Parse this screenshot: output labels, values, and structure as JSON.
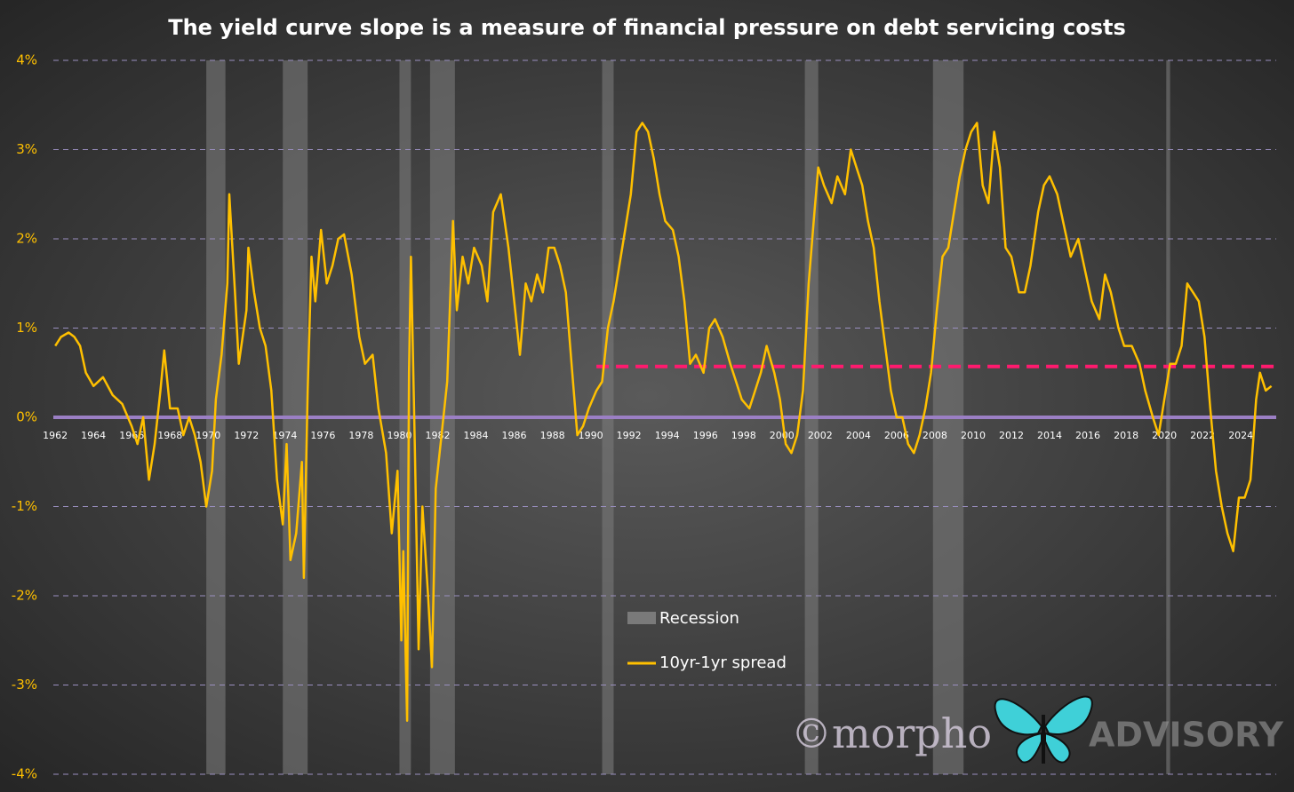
{
  "chart_data": {
    "type": "line",
    "title": "The yield curve slope is a measure of financial pressure on debt servicing costs",
    "series": [
      {
        "name": "10yr-1yr spread",
        "color": "#ffc000",
        "x": [
          1962.0,
          1962.3,
          1962.7,
          1963.0,
          1963.3,
          1963.6,
          1964.0,
          1964.5,
          1965.0,
          1965.5,
          1966.0,
          1966.3,
          1966.6,
          1966.9,
          1967.2,
          1967.5,
          1967.7,
          1968.0,
          1968.4,
          1968.7,
          1969.0,
          1969.3,
          1969.6,
          1969.9,
          1970.2,
          1970.4,
          1970.7,
          1971.0,
          1971.1,
          1971.4,
          1971.6,
          1972.0,
          1972.1,
          1972.4,
          1972.7,
          1973.0,
          1973.3,
          1973.6,
          1973.9,
          1974.1,
          1974.3,
          1974.6,
          1974.9,
          1975.0,
          1975.2,
          1975.4,
          1975.6,
          1975.9,
          1976.2,
          1976.5,
          1976.8,
          1977.1,
          1977.5,
          1977.9,
          1978.2,
          1978.6,
          1978.9,
          1979.3,
          1979.6,
          1979.9,
          1980.1,
          1980.2,
          1980.4,
          1980.5,
          1980.6,
          1980.8,
          1981.0,
          1981.2,
          1981.5,
          1981.7,
          1981.9,
          1982.2,
          1982.5,
          1982.8,
          1983.0,
          1983.3,
          1983.6,
          1983.9,
          1984.3,
          1984.6,
          1984.9,
          1985.3,
          1985.7,
          1986.0,
          1986.3,
          1986.6,
          1986.9,
          1987.2,
          1987.5,
          1987.8,
          1988.1,
          1988.4,
          1988.7,
          1989.0,
          1989.3,
          1989.6,
          1989.9,
          1990.3,
          1990.6,
          1990.9,
          1991.2,
          1991.5,
          1991.8,
          1992.1,
          1992.4,
          1992.7,
          1993.0,
          1993.3,
          1993.6,
          1993.9,
          1994.3,
          1994.6,
          1994.9,
          1995.2,
          1995.5,
          1995.9,
          1996.2,
          1996.5,
          1996.9,
          1997.3,
          1997.6,
          1997.9,
          1998.3,
          1998.6,
          1998.9,
          1999.2,
          1999.6,
          1999.9,
          2000.2,
          2000.5,
          2000.8,
          2001.1,
          2001.4,
          2001.7,
          2001.9,
          2002.2,
          2002.6,
          2002.9,
          2003.3,
          2003.6,
          2003.9,
          2004.2,
          2004.5,
          2004.8,
          2005.1,
          2005.4,
          2005.7,
          2006.0,
          2006.3,
          2006.6,
          2006.9,
          2007.2,
          2007.5,
          2007.8,
          2008.1,
          2008.4,
          2008.7,
          2009.0,
          2009.3,
          2009.6,
          2009.9,
          2010.2,
          2010.5,
          2010.8,
          2011.1,
          2011.4,
          2011.7,
          2012.0,
          2012.4,
          2012.7,
          2013.0,
          2013.4,
          2013.7,
          2014.0,
          2014.4,
          2014.8,
          2015.1,
          2015.5,
          2015.9,
          2016.2,
          2016.6,
          2016.9,
          2017.2,
          2017.6,
          2017.9,
          2018.3,
          2018.7,
          2019.0,
          2019.4,
          2019.7,
          2020.0,
          2020.3,
          2020.6,
          2020.9,
          2021.2,
          2021.5,
          2021.8,
          2022.1,
          2022.4,
          2022.7,
          2023.0,
          2023.3,
          2023.6,
          2023.9,
          2024.2,
          2024.5,
          2024.8,
          2025.0,
          2025.3,
          2025.6
        ],
        "values": [
          0.8,
          0.9,
          0.95,
          0.9,
          0.8,
          0.5,
          0.35,
          0.45,
          0.25,
          0.15,
          -0.1,
          -0.3,
          0.0,
          -0.7,
          -0.3,
          0.3,
          0.75,
          0.1,
          0.1,
          -0.2,
          0.0,
          -0.2,
          -0.5,
          -1.0,
          -0.6,
          0.2,
          0.7,
          1.5,
          2.5,
          1.4,
          0.6,
          1.2,
          1.9,
          1.4,
          1.0,
          0.8,
          0.3,
          -0.7,
          -1.2,
          -0.3,
          -1.6,
          -1.3,
          -0.5,
          -1.8,
          0.3,
          1.8,
          1.3,
          2.1,
          1.5,
          1.7,
          2.0,
          2.05,
          1.6,
          0.9,
          0.6,
          0.7,
          0.1,
          -0.4,
          -1.3,
          -0.6,
          -2.5,
          -1.5,
          -3.4,
          0.5,
          1.8,
          -0.3,
          -2.6,
          -1.0,
          -2.0,
          -2.8,
          -0.8,
          -0.2,
          0.4,
          2.2,
          1.2,
          1.8,
          1.5,
          1.9,
          1.7,
          1.3,
          2.3,
          2.5,
          1.9,
          1.3,
          0.7,
          1.5,
          1.3,
          1.6,
          1.4,
          1.9,
          1.9,
          1.7,
          1.4,
          0.6,
          -0.2,
          -0.1,
          0.1,
          0.3,
          0.4,
          1.0,
          1.3,
          1.7,
          2.1,
          2.5,
          3.2,
          3.3,
          3.2,
          2.9,
          2.5,
          2.2,
          2.1,
          1.8,
          1.3,
          0.6,
          0.7,
          0.5,
          1.0,
          1.1,
          0.9,
          0.6,
          0.4,
          0.2,
          0.1,
          0.3,
          0.5,
          0.8,
          0.5,
          0.2,
          -0.3,
          -0.4,
          -0.2,
          0.3,
          1.5,
          2.3,
          2.8,
          2.6,
          2.4,
          2.7,
          2.5,
          3.0,
          2.8,
          2.6,
          2.2,
          1.9,
          1.3,
          0.8,
          0.3,
          0.0,
          0.0,
          -0.3,
          -0.4,
          -0.2,
          0.1,
          0.5,
          1.2,
          1.8,
          1.9,
          2.3,
          2.7,
          3.0,
          3.2,
          3.3,
          2.6,
          2.4,
          3.2,
          2.8,
          1.9,
          1.8,
          1.4,
          1.4,
          1.7,
          2.3,
          2.6,
          2.7,
          2.5,
          2.1,
          1.8,
          2.0,
          1.6,
          1.3,
          1.1,
          1.6,
          1.4,
          1.0,
          0.8,
          0.8,
          0.6,
          0.3,
          0.0,
          -0.2,
          0.2,
          0.6,
          0.6,
          0.8,
          1.5,
          1.4,
          1.3,
          0.9,
          0.1,
          -0.6,
          -1.0,
          -1.3,
          -1.5,
          -0.9,
          -0.9,
          -0.7,
          0.2,
          0.5,
          0.3,
          0.35
        ]
      }
    ],
    "recessions": {
      "name": "Recession",
      "color": "#7a7a7a",
      "periods": [
        [
          1969.9,
          1970.9
        ],
        [
          1973.9,
          1975.2
        ],
        [
          1980.0,
          1980.6
        ],
        [
          1981.6,
          1982.9
        ],
        [
          1990.6,
          1991.2
        ],
        [
          2001.2,
          2001.9
        ],
        [
          2007.9,
          2009.5
        ],
        [
          2020.1,
          2020.3
        ]
      ]
    },
    "reference_line": {
      "value": 0.57,
      "x_start": 1990.3,
      "color": "#ff1a6e"
    },
    "zero_line_color": "#9b7fc4",
    "xlim": [
      1961.9,
      2025.85
    ],
    "xticks": [
      1962,
      1964,
      1966,
      1968,
      1970,
      1972,
      1974,
      1976,
      1978,
      1980,
      1982,
      1984,
      1986,
      1988,
      1990,
      1992,
      1994,
      1996,
      1998,
      2000,
      2002,
      2004,
      2006,
      2008,
      2010,
      2012,
      2014,
      2016,
      2018,
      2020,
      2022,
      2024
    ],
    "ylim": [
      -4,
      4
    ],
    "yticks": [
      {
        "value": -4,
        "label": "-4%"
      },
      {
        "value": -3,
        "label": "-3%"
      },
      {
        "value": -2,
        "label": "-2%"
      },
      {
        "value": -1,
        "label": "-1%"
      },
      {
        "value": 0,
        "label": "0%"
      },
      {
        "value": 1,
        "label": "1%"
      },
      {
        "value": 2,
        "label": "2%"
      },
      {
        "value": 3,
        "label": "3%"
      },
      {
        "value": 4,
        "label": "4%"
      }
    ],
    "grid": true,
    "watermark": [
      "©morpho",
      "ADVISORY"
    ]
  }
}
